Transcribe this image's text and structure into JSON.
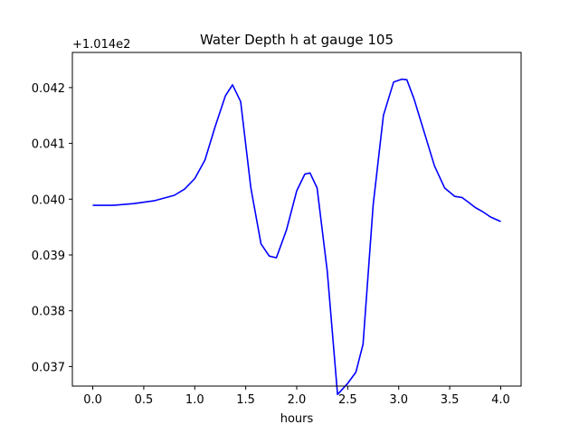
{
  "chart_data": {
    "type": "line",
    "title": "Water Depth h at gauge 105",
    "xlabel": "hours",
    "ylabel": "",
    "offset_label": "+1.014e2",
    "xlim": [
      -0.2,
      4.2
    ],
    "ylim": [
      0.03665,
      0.04263
    ],
    "x_ticks": [
      0.0,
      0.5,
      1.0,
      1.5,
      2.0,
      2.5,
      3.0,
      3.5,
      4.0
    ],
    "x_tick_labels": [
      "0.0",
      "0.5",
      "1.0",
      "1.5",
      "2.0",
      "2.5",
      "3.0",
      "3.5",
      "4.0"
    ],
    "y_ticks": [
      0.037,
      0.038,
      0.039,
      0.04,
      0.041,
      0.042
    ],
    "y_tick_labels": [
      "0.037",
      "0.038",
      "0.039",
      "0.040",
      "0.041",
      "0.042"
    ],
    "grid": false,
    "series": [
      {
        "color": "#0000ff",
        "x": [
          0.0,
          0.2,
          0.4,
          0.6,
          0.8,
          0.9,
          1.0,
          1.1,
          1.2,
          1.3,
          1.37,
          1.45,
          1.55,
          1.65,
          1.73,
          1.8,
          1.9,
          2.0,
          2.08,
          2.13,
          2.2,
          2.3,
          2.4,
          2.5,
          2.58,
          2.65,
          2.75,
          2.85,
          2.95,
          3.03,
          3.08,
          3.15,
          3.25,
          3.35,
          3.45,
          3.55,
          3.62,
          3.68,
          3.75,
          3.82,
          3.9,
          4.0
        ],
        "y": [
          0.03989,
          0.03989,
          0.03992,
          0.03997,
          0.04007,
          0.04018,
          0.04037,
          0.0407,
          0.0413,
          0.04185,
          0.04205,
          0.04175,
          0.0402,
          0.0392,
          0.03898,
          0.03895,
          0.03945,
          0.04015,
          0.04045,
          0.04047,
          0.0402,
          0.0387,
          0.0365,
          0.0367,
          0.0369,
          0.0374,
          0.0399,
          0.0415,
          0.0421,
          0.04215,
          0.04214,
          0.0418,
          0.0412,
          0.0406,
          0.0402,
          0.04005,
          0.04003,
          0.03995,
          0.03985,
          0.03978,
          0.03968,
          0.0396
        ]
      }
    ]
  }
}
